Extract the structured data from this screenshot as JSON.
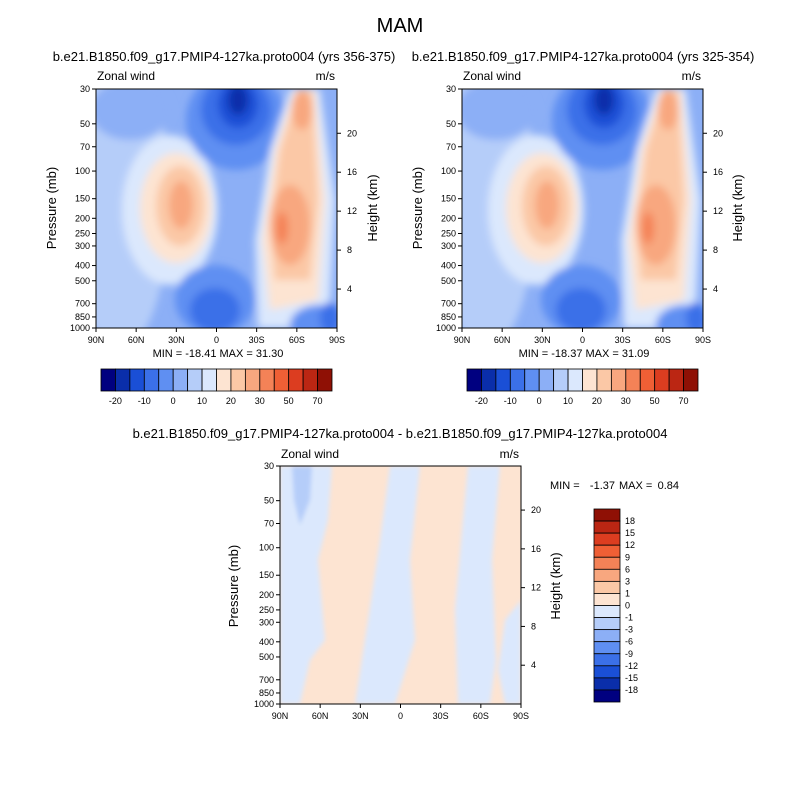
{
  "page_title": "MAM",
  "colors": {
    "ramp": [
      "#000080",
      "#0a2eaa",
      "#1a4fd6",
      "#3b70e8",
      "#5f8ff2",
      "#8caff6",
      "#b5cdf9",
      "#dbe8fd",
      "#fde4d2",
      "#fbc8a6",
      "#f8a77f",
      "#f48257",
      "#ef5f35",
      "#dc3d20",
      "#bb2613",
      "#8f1005"
    ],
    "diff_ramp": [
      "#000080",
      "#0a2eaa",
      "#1a4fd6",
      "#3b70e8",
      "#5f8ff2",
      "#8caff6",
      "#b5cdf9",
      "#dbe8fd",
      "#fde4d2",
      "#fbc8a6",
      "#f8a77f",
      "#f48257",
      "#ef5f35",
      "#dc3d20",
      "#bb2613",
      "#8f1005"
    ]
  },
  "chart_data": [
    {
      "type": "heatmap",
      "title": "b.e21.B1850.f09_g17.PMIP4-127ka.proto004 (yrs 356-375)",
      "left_label": "Zonal wind",
      "right_label": "m/s",
      "ylabel": "Pressure (mb)",
      "ylabel_right": "Height (km)",
      "x_ticks": [
        "90N",
        "60N",
        "30N",
        "0",
        "30S",
        "60S",
        "90S"
      ],
      "y_ticks": [
        "30",
        "50",
        "70",
        "100",
        "150",
        "200",
        "250",
        "300",
        "400",
        "500",
        "700",
        "850",
        "1000"
      ],
      "height_ticks": [
        "20",
        "16",
        "12",
        "8",
        "4"
      ],
      "stats": "MIN = -18.41   MAX =  31.30",
      "colorbar_labels": [
        "-20",
        "-10",
        "0",
        "10",
        "20",
        "30",
        "50",
        "70"
      ],
      "min": -18.41,
      "max": 31.3
    },
    {
      "type": "heatmap",
      "title": "b.e21.B1850.f09_g17.PMIP4-127ka.proto004 (yrs 325-354)",
      "left_label": "Zonal wind",
      "right_label": "m/s",
      "ylabel": "Pressure (mb)",
      "ylabel_right": "Height (km)",
      "x_ticks": [
        "90N",
        "60N",
        "30N",
        "0",
        "30S",
        "60S",
        "90S"
      ],
      "y_ticks": [
        "30",
        "50",
        "70",
        "100",
        "150",
        "200",
        "250",
        "300",
        "400",
        "500",
        "700",
        "850",
        "1000"
      ],
      "height_ticks": [
        "20",
        "16",
        "12",
        "8",
        "4"
      ],
      "stats": "MIN = -18.37   MAX =  31.09",
      "colorbar_labels": [
        "-20",
        "-10",
        "0",
        "10",
        "20",
        "30",
        "50",
        "70"
      ],
      "min": -18.37,
      "max": 31.09
    },
    {
      "type": "heatmap",
      "title": "b.e21.B1850.f09_g17.PMIP4-127ka.proto004 - b.e21.B1850.f09_g17.PMIP4-127ka.proto004",
      "left_label": "Zonal wind",
      "right_label": "m/s",
      "ylabel": "Pressure (mb)",
      "ylabel_right": "Height (km)",
      "x_ticks": [
        "90N",
        "60N",
        "30N",
        "0",
        "30S",
        "60S",
        "90S"
      ],
      "y_ticks": [
        "30",
        "50",
        "70",
        "100",
        "150",
        "200",
        "250",
        "300",
        "400",
        "500",
        "700",
        "850",
        "1000"
      ],
      "height_ticks": [
        "20",
        "16",
        "12",
        "8",
        "4"
      ],
      "stats_min_label": "MIN =",
      "stats_min": "-1.37",
      "stats_max_label": "MAX =",
      "stats_max": "0.84",
      "colorbar_labels": [
        "18",
        "15",
        "12",
        "9",
        "6",
        "3",
        "1",
        "0",
        "-1",
        "-3",
        "-6",
        "-9",
        "-12",
        "-15",
        "-18"
      ],
      "min": -1.37,
      "max": 0.84
    }
  ]
}
